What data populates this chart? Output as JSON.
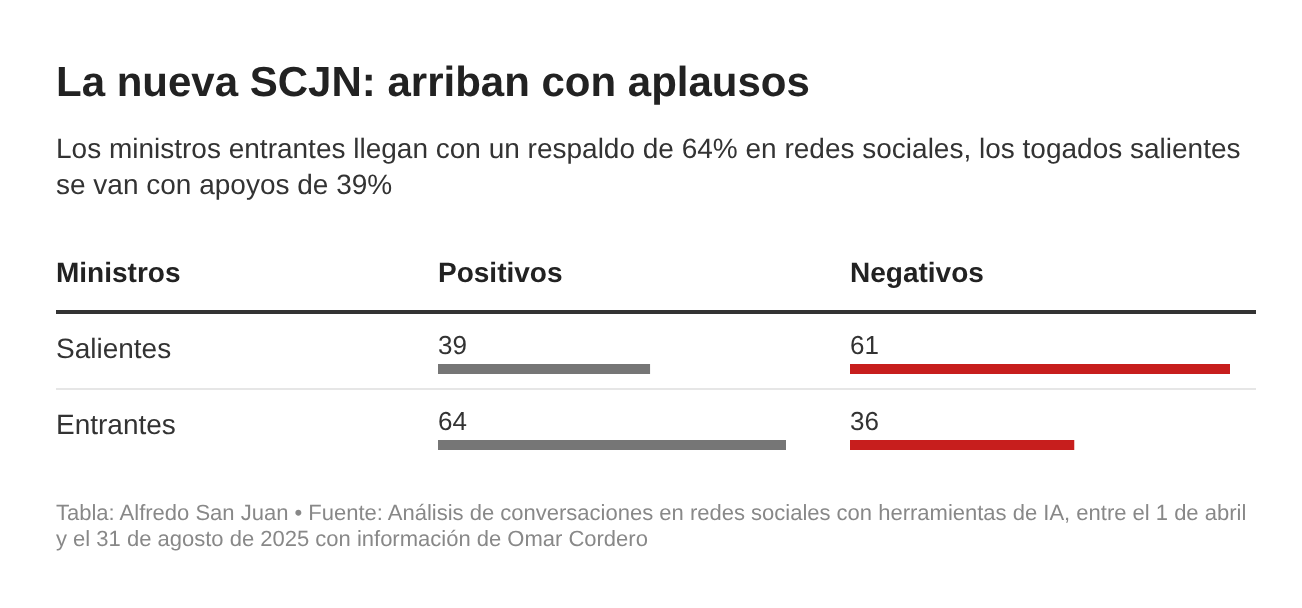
{
  "chart_data": [
    {
      "type": "bar",
      "orientation": "horizontal",
      "title": "La nueva SCJN: arriban con aplausos",
      "subtitle": "Los ministros entrantes llegan con un respaldo de 64% en redes sociales, los togados salientes se van con apoyos de 39%",
      "ylabel": "Ministros",
      "categories": [
        "Salientes",
        "Entrantes"
      ],
      "series": [
        {
          "name": "Positivos",
          "color": "#767676",
          "values": [
            39,
            64
          ]
        }
      ],
      "data_labels": true,
      "annotations": [
        "Tabla: Alfredo San Juan • Fuente: Análisis de conversaciones en redes sociales con herramientas de IA, entre el 1 de abril y el 31 de agosto de 2025 con información de Omar Cordero"
      ]
    },
    {
      "type": "bar",
      "orientation": "horizontal",
      "categories": [
        null,
        null
      ],
      "series": [
        {
          "name": "Negativos",
          "color": "#c71e1d",
          "values": [
            61,
            36
          ]
        }
      ],
      "data_labels": true
    }
  ]
}
